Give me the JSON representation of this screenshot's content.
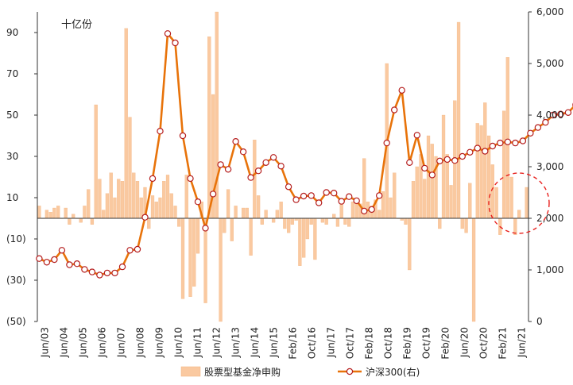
{
  "chart_data": {
    "type": "bar+line",
    "unit_label": "十亿份",
    "left_axis": {
      "ylim": [
        -50,
        100
      ],
      "ticks": [
        90,
        70,
        50,
        30,
        10,
        -10,
        -30,
        -50
      ],
      "tick_labels": [
        "90",
        "70",
        "50",
        "30",
        "10",
        "(10)",
        "(30)",
        "(50)"
      ]
    },
    "right_axis": {
      "ylim": [
        0,
        6000
      ],
      "ticks": [
        0,
        1000,
        2000,
        3000,
        4000,
        5000,
        6000
      ],
      "tick_labels": [
        "0",
        "1,000",
        "2,000",
        "3,000",
        "4,000",
        "5,000",
        "6,000"
      ]
    },
    "x_labels": [
      "Jun/03",
      "Jun/04",
      "Jun/05",
      "Jun/06",
      "Jun/07",
      "Jun/08",
      "Jun/09",
      "Jun/10",
      "Jun/11",
      "Jun/12",
      "Jun/13",
      "Jun/14",
      "Jun/15",
      "Feb/16",
      "Oct/16",
      "Jun/17",
      "Oct/17",
      "Feb/18",
      "Oct/18",
      "Feb/19",
      "Oct/19",
      "Feb/20",
      "Jun/20",
      "Oct/20",
      "Feb/21",
      "Jun/21"
    ],
    "series": [
      {
        "name": "股票型基金净申购",
        "axis": "left",
        "values": [
          6,
          0,
          4,
          3,
          5,
          6,
          0,
          5,
          -3,
          2,
          0,
          -2,
          6,
          14,
          -3,
          55,
          19,
          4,
          12,
          22,
          10,
          19,
          18,
          92,
          49,
          22,
          18,
          10,
          15,
          -5,
          11,
          8,
          10,
          18,
          21,
          12,
          6,
          -4,
          -39,
          21,
          -38,
          -33,
          -17,
          8,
          -41,
          88,
          60,
          100,
          -50,
          -7,
          14,
          -11,
          6,
          0,
          5,
          5,
          -18,
          38,
          11,
          -3,
          4,
          0,
          -2,
          4,
          8,
          -5,
          -7,
          -3,
          -1,
          -23,
          -19,
          -10,
          -3,
          -20,
          0,
          -2,
          -3,
          0,
          2,
          -4,
          9,
          -3,
          -4,
          8,
          7,
          7,
          29,
          8,
          6,
          9,
          4,
          13,
          75,
          10,
          22,
          0,
          -1,
          -3,
          -25,
          18,
          25,
          31,
          19,
          40,
          36,
          30,
          -5,
          50,
          31,
          16,
          57,
          95,
          -5,
          -7,
          17,
          -50,
          46,
          45,
          56,
          40,
          26,
          15,
          -8,
          52,
          78,
          20,
          -8,
          4,
          0,
          15
        ],
        "color": "#fac9a0"
      },
      {
        "name": "沪深300(右)",
        "axis": "right",
        "points": [
          {
            "i": 0,
            "v": 1220
          },
          {
            "i": 2,
            "v": 1150
          },
          {
            "i": 4,
            "v": 1200
          },
          {
            "i": 6,
            "v": 1380
          },
          {
            "i": 8,
            "v": 1100
          },
          {
            "i": 10,
            "v": 1120
          },
          {
            "i": 12,
            "v": 1010
          },
          {
            "i": 14,
            "v": 960
          },
          {
            "i": 16,
            "v": 900
          },
          {
            "i": 18,
            "v": 940
          },
          {
            "i": 20,
            "v": 940
          },
          {
            "i": 22,
            "v": 1060
          },
          {
            "i": 24,
            "v": 1380
          },
          {
            "i": 26,
            "v": 1400
          },
          {
            "i": 28,
            "v": 2020
          },
          {
            "i": 30,
            "v": 2770
          },
          {
            "i": 32,
            "v": 3690
          },
          {
            "i": 34,
            "v": 5580
          },
          {
            "i": 36,
            "v": 5400
          },
          {
            "i": 38,
            "v": 3600
          },
          {
            "i": 40,
            "v": 2770
          },
          {
            "i": 42,
            "v": 2320
          },
          {
            "i": 44,
            "v": 1810
          },
          {
            "i": 46,
            "v": 2470
          },
          {
            "i": 48,
            "v": 3040
          },
          {
            "i": 50,
            "v": 2950
          },
          {
            "i": 52,
            "v": 3490
          },
          {
            "i": 54,
            "v": 3290
          },
          {
            "i": 56,
            "v": 2790
          },
          {
            "i": 58,
            "v": 2920
          },
          {
            "i": 60,
            "v": 3080
          },
          {
            "i": 62,
            "v": 3180
          },
          {
            "i": 64,
            "v": 3010
          },
          {
            "i": 66,
            "v": 2610
          },
          {
            "i": 68,
            "v": 2360
          },
          {
            "i": 70,
            "v": 2430
          },
          {
            "i": 72,
            "v": 2440
          },
          {
            "i": 74,
            "v": 2300
          },
          {
            "i": 76,
            "v": 2500
          },
          {
            "i": 78,
            "v": 2490
          },
          {
            "i": 80,
            "v": 2330
          },
          {
            "i": 82,
            "v": 2420
          },
          {
            "i": 84,
            "v": 2340
          },
          {
            "i": 86,
            "v": 2140
          },
          {
            "i": 88,
            "v": 2170
          },
          {
            "i": 90,
            "v": 2440
          },
          {
            "i": 92,
            "v": 3460
          },
          {
            "i": 94,
            "v": 4100
          },
          {
            "i": 96,
            "v": 4480
          },
          {
            "i": 98,
            "v": 3080
          },
          {
            "i": 100,
            "v": 3610
          },
          {
            "i": 102,
            "v": 2970
          },
          {
            "i": 104,
            "v": 2840
          },
          {
            "i": 106,
            "v": 3110
          },
          {
            "i": 108,
            "v": 3140
          },
          {
            "i": 110,
            "v": 3120
          },
          {
            "i": 112,
            "v": 3200
          },
          {
            "i": 114,
            "v": 3280
          },
          {
            "i": 116,
            "v": 3360
          },
          {
            "i": 118,
            "v": 3300
          },
          {
            "i": 120,
            "v": 3400
          },
          {
            "i": 122,
            "v": 3460
          },
          {
            "i": 124,
            "v": 3480
          },
          {
            "i": 126,
            "v": 3460
          },
          {
            "i": 128,
            "v": 3500
          },
          {
            "i": 130,
            "v": 3650
          },
          {
            "i": 132,
            "v": 3760
          },
          {
            "i": 134,
            "v": 3860
          },
          {
            "i": 136,
            "v": 4000
          },
          {
            "i": 138,
            "v": 4020
          },
          {
            "i": 140,
            "v": 4050
          },
          {
            "i": 142,
            "v": 4200
          },
          {
            "i": 144,
            "v": 4030
          },
          {
            "i": 146,
            "v": 3870
          },
          {
            "i": 148,
            "v": 3750
          },
          {
            "i": 150,
            "v": 3600
          },
          {
            "i": 152,
            "v": 3450
          },
          {
            "i": 154,
            "v": 3380
          },
          {
            "i": 156,
            "v": 3550
          },
          {
            "i": 158,
            "v": 3150
          },
          {
            "i": 160,
            "v": 3200
          },
          {
            "i": 162,
            "v": 3060
          },
          {
            "i": 164,
            "v": 3200
          },
          {
            "i": 166,
            "v": 3650
          },
          {
            "i": 168,
            "v": 3830
          },
          {
            "i": 170,
            "v": 3840
          },
          {
            "i": 172,
            "v": 3640
          },
          {
            "i": 174,
            "v": 3860
          },
          {
            "i": 176,
            "v": 3880
          },
          {
            "i": 178,
            "v": 3840
          },
          {
            "i": 180,
            "v": 3900
          },
          {
            "i": 182,
            "v": 3900
          },
          {
            "i": 184,
            "v": 4100
          },
          {
            "i": 186,
            "v": 4000
          },
          {
            "i": 188,
            "v": 3950
          },
          {
            "i": 190,
            "v": 3870
          },
          {
            "i": 192,
            "v": 3910
          },
          {
            "i": 194,
            "v": 3750
          },
          {
            "i": 196,
            "v": 4180
          },
          {
            "i": 198,
            "v": 4600
          },
          {
            "i": 200,
            "v": 4700
          },
          {
            "i": 202,
            "v": 4640
          },
          {
            "i": 204,
            "v": 4800
          },
          {
            "i": 206,
            "v": 5050
          },
          {
            "i": 208,
            "v": 5300
          },
          {
            "i": 210,
            "v": 5420
          },
          {
            "i": 212,
            "v": 5140
          },
          {
            "i": 214,
            "v": 5250
          },
          {
            "i": 216,
            "v": 5410
          },
          {
            "i": 218,
            "v": 5300
          },
          {
            "i": 220,
            "v": 5200
          }
        ],
        "color": "#e8730a"
      }
    ],
    "legend": {
      "placement": "bottom"
    },
    "annotation": {
      "shape": "dashed-circle",
      "color": "#e8211e"
    }
  }
}
